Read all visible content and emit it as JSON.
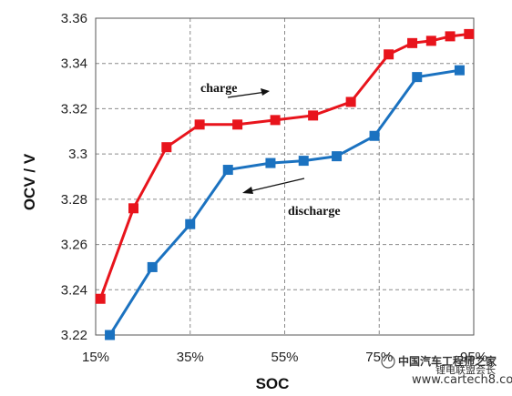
{
  "chart_data": {
    "type": "line",
    "xlabel": "SOC",
    "ylabel": "OCV / V",
    "xlim": [
      15,
      95
    ],
    "ylim": [
      3.22,
      3.36
    ],
    "x_ticks": [
      "15%",
      "35%",
      "55%",
      "75%",
      "95%"
    ],
    "y_ticks": [
      "3.22",
      "3.24",
      "3.26",
      "3.28",
      "3.3",
      "3.32",
      "3.34",
      "3.36"
    ],
    "grid": "dashed",
    "series": [
      {
        "name": "charge",
        "color": "#e8141c",
        "marker": "square",
        "x": [
          16,
          23,
          30,
          37,
          45,
          53,
          61,
          69,
          77,
          82,
          86,
          90,
          94
        ],
        "y": [
          3.236,
          3.276,
          3.303,
          3.313,
          3.313,
          3.315,
          3.317,
          3.323,
          3.344,
          3.349,
          3.35,
          3.352,
          3.353
        ]
      },
      {
        "name": "discharge",
        "color": "#1b72c0",
        "marker": "square",
        "x": [
          18,
          27,
          35,
          43,
          52,
          59,
          66,
          74,
          83,
          92
        ],
        "y": [
          3.22,
          3.25,
          3.269,
          3.293,
          3.296,
          3.297,
          3.299,
          3.308,
          3.334,
          3.337
        ]
      }
    ],
    "annotations": [
      {
        "text": "charge",
        "arrow": "right"
      },
      {
        "text": "discharge",
        "arrow": "left"
      }
    ]
  },
  "watermark": {
    "title": "中国汽车工程师之家",
    "subtitle": "www.cartech8.com",
    "tag": "锂电联盟会长"
  }
}
